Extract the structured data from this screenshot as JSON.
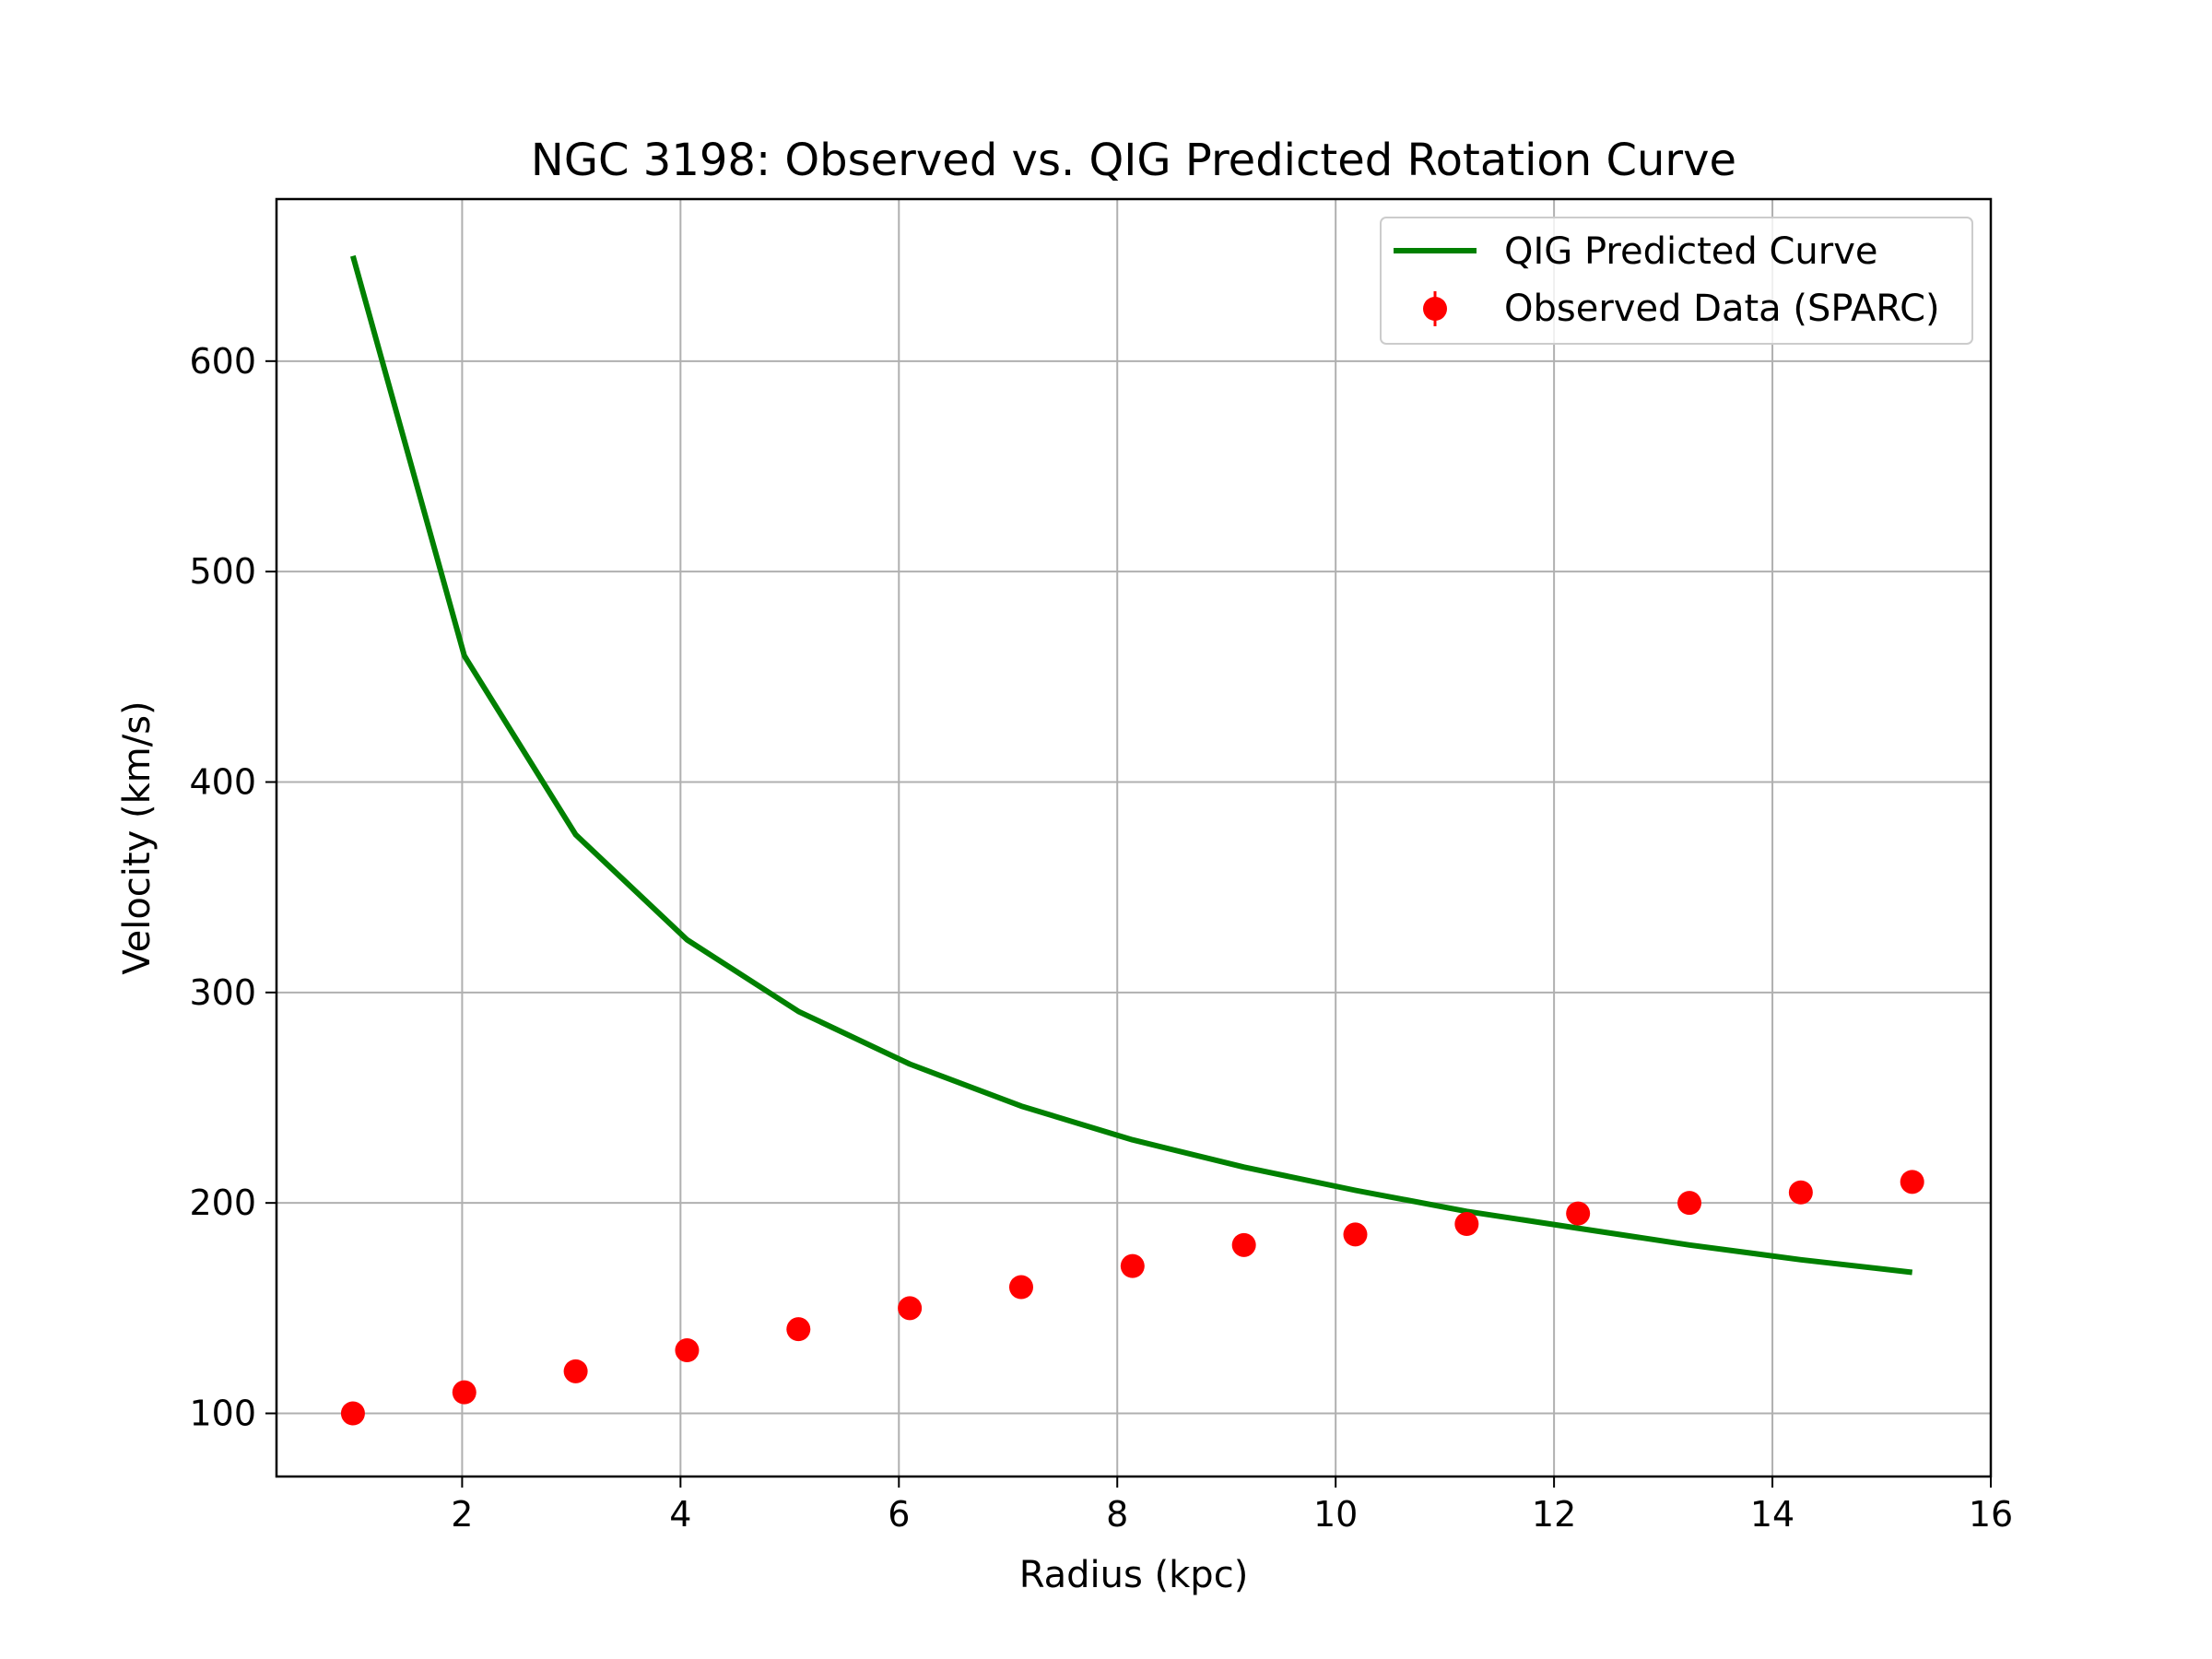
{
  "chart_data": {
    "type": "scatter",
    "title": "NGC 3198: Observed vs. QIG Predicted Rotation Curve",
    "xlabel": "Radius (kpc)",
    "ylabel": "Velocity (km/s)",
    "xlim": [
      0.3,
      16.0
    ],
    "ylim": [
      70,
      677
    ],
    "xticks": [
      2,
      4,
      6,
      8,
      10,
      12,
      14,
      16
    ],
    "yticks": [
      100,
      200,
      300,
      400,
      500,
      600
    ],
    "grid": true,
    "legend_position": "top-right",
    "series": [
      {
        "name": "QIG Predicted Curve",
        "kind": "line",
        "color": "#008000",
        "x": [
          1.0,
          2.02,
          3.04,
          4.06,
          5.08,
          6.1,
          7.12,
          8.14,
          9.16,
          10.18,
          11.2,
          12.22,
          13.24,
          14.26,
          15.28
        ],
        "y": [
          650,
          460,
          375,
          325,
          291,
          266,
          246,
          230,
          217,
          206,
          196,
          188,
          180,
          173,
          167
        ]
      },
      {
        "name": "Observed Data (SPARC)",
        "kind": "scatter",
        "color": "#ff0000",
        "x": [
          1.0,
          2.02,
          3.04,
          4.06,
          5.08,
          6.1,
          7.12,
          8.14,
          9.16,
          10.18,
          11.2,
          12.22,
          13.24,
          14.26,
          15.28
        ],
        "y": [
          100,
          110,
          120,
          130,
          140,
          150,
          160,
          170,
          180,
          185,
          190,
          195,
          200,
          205,
          210
        ]
      }
    ]
  }
}
